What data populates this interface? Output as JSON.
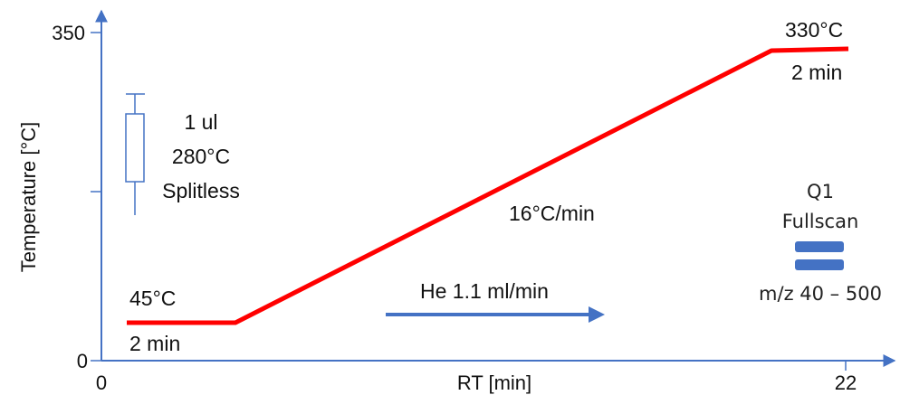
{
  "diagram": {
    "y_axis_label": "Temperature [°C]",
    "x_axis_label": "RT [min]",
    "y_ticks": [
      "350",
      "0"
    ],
    "x_ticks": [
      "0",
      "22"
    ],
    "injection": {
      "volume": "1 ul",
      "temperature": "280°C",
      "mode": "Splitless"
    },
    "start_segment": {
      "temperature": "45°C",
      "hold": "2 min"
    },
    "ramp_rate": "16°C/min",
    "end_segment": {
      "temperature": "330°C",
      "hold": "2 min"
    },
    "carrier_gas": "He 1.1 ml/min",
    "ms": {
      "quadrupole": "Q1",
      "mode": "Fullscan",
      "mass_range": "m/z 40 – 500"
    }
  },
  "colors": {
    "axis": "#4472C4",
    "profile": "#FF0000",
    "flow_arrow": "#4472C4",
    "ms_bars": "#4472C4"
  }
}
